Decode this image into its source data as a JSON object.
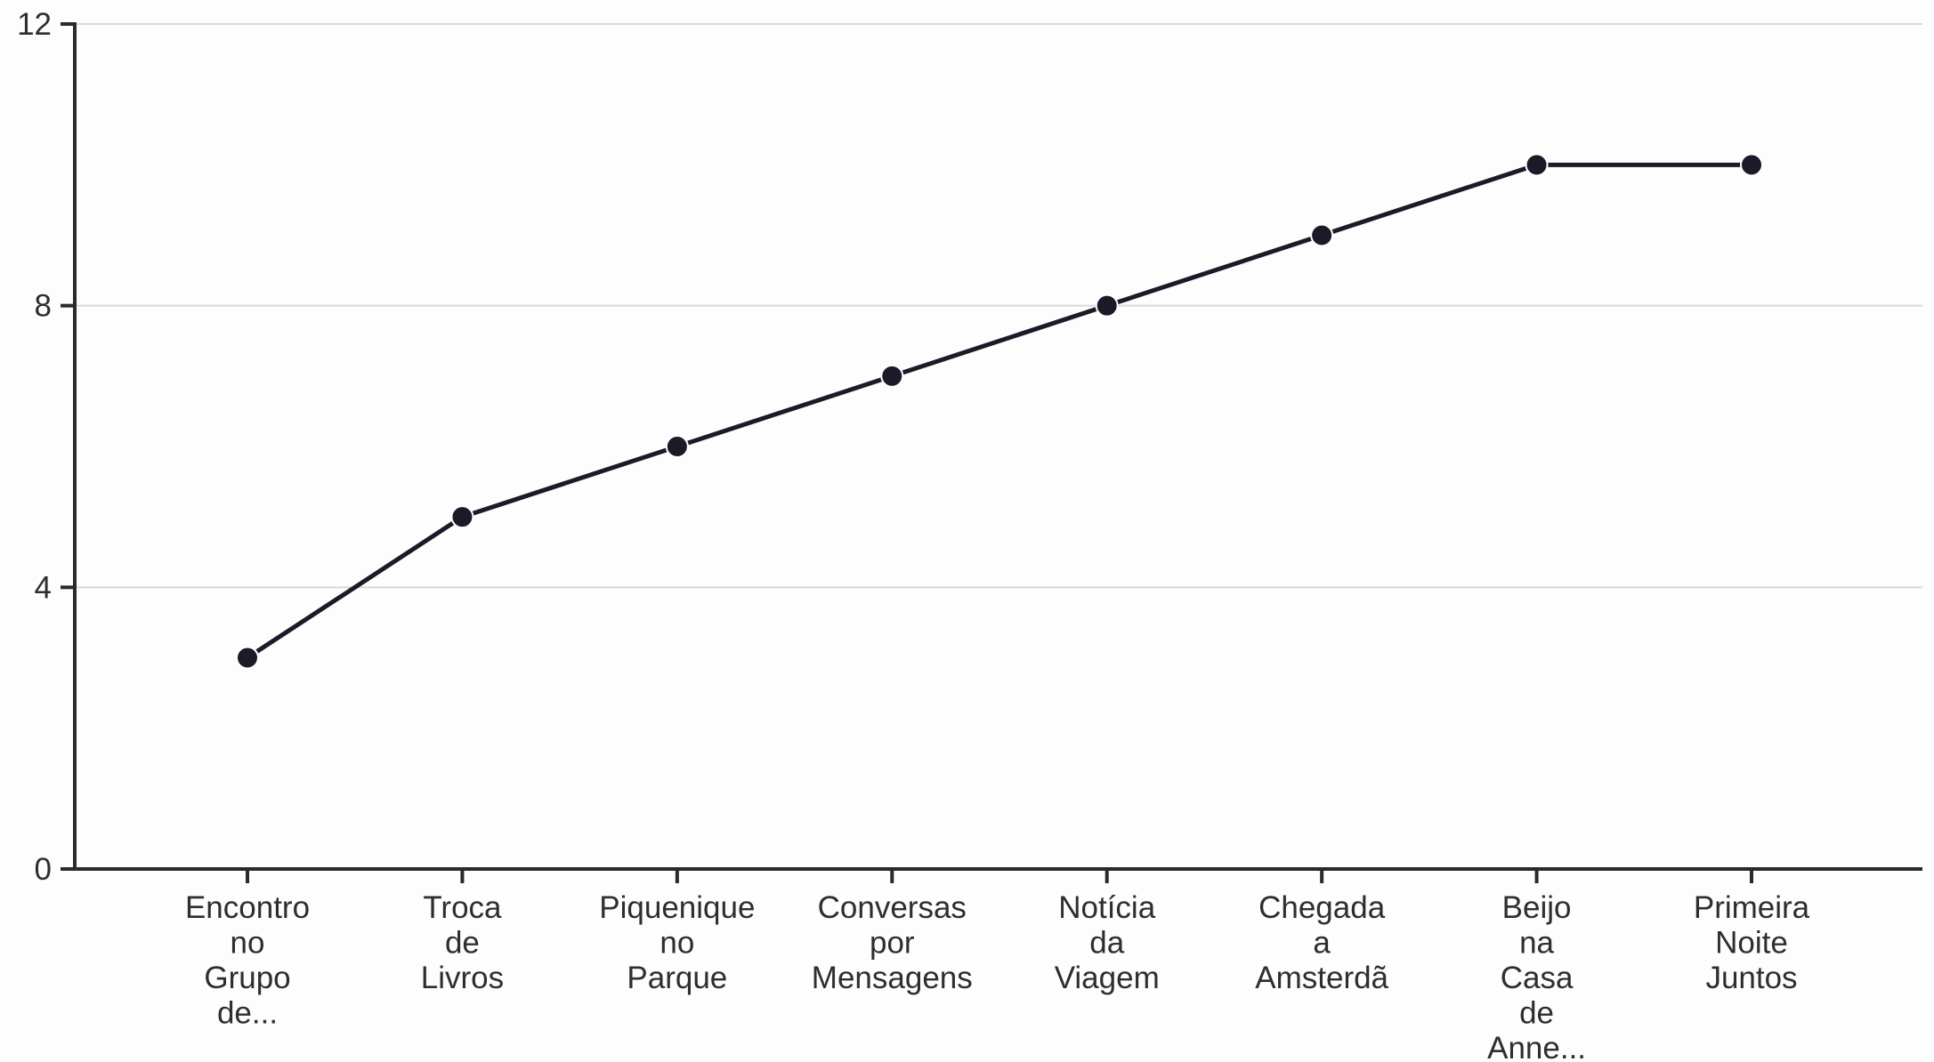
{
  "chart_data": {
    "type": "line",
    "title": "",
    "xlabel": "",
    "ylabel": "",
    "categories": [
      "Encontro no Grupo de...",
      "Troca de Livros",
      "Piquenique no Parque",
      "Conversas por Mensagens",
      "Notícia da Viagem",
      "Chegada a Amsterdã",
      "Beijo na Casa de Anne...",
      "Primeira Noite Juntos"
    ],
    "category_label_lines": [
      [
        "Encontro",
        "no",
        "Grupo",
        "de..."
      ],
      [
        "Troca",
        "de",
        "Livros"
      ],
      [
        "Piquenique",
        "no",
        "Parque"
      ],
      [
        "Conversas",
        "por",
        "Mensagens"
      ],
      [
        "Notícia",
        "da",
        "Viagem"
      ],
      [
        "Chegada",
        "a",
        "Amsterdã"
      ],
      [
        "Beijo",
        "na",
        "Casa",
        "de",
        "Anne..."
      ],
      [
        "Primeira",
        "Noite",
        "Juntos"
      ]
    ],
    "series": [
      {
        "values": [
          3,
          5,
          6,
          7,
          8,
          9,
          10,
          10
        ]
      }
    ],
    "ylim": [
      0,
      12
    ],
    "yticks": [
      "0",
      "4",
      "8",
      "12"
    ],
    "grid": true,
    "legend": "none",
    "colors": {
      "line": "#1b1a29",
      "grid": "#d9d9d9",
      "axis": "#2a2a2a",
      "text": "#2e2e2e"
    }
  }
}
